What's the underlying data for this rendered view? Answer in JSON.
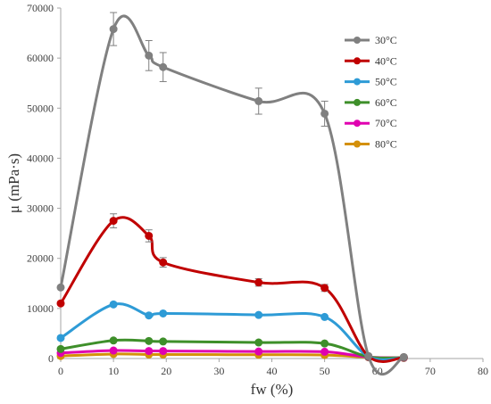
{
  "chart_data": {
    "type": "line",
    "title": "",
    "xlabel": "fw (%)",
    "ylabel": "μ (mPa·s)",
    "xlim": [
      0,
      80
    ],
    "ylim": [
      0,
      70000
    ],
    "x_ticks": [
      0,
      10,
      20,
      30,
      40,
      50,
      60,
      70,
      80
    ],
    "y_ticks": [
      0,
      10000,
      20000,
      30000,
      40000,
      50000,
      60000,
      70000
    ],
    "grid": false,
    "legend_position": "top-right",
    "smooth": true,
    "series": [
      {
        "name": "30°C",
        "color": "#808080",
        "x": [
          0,
          10,
          16.7,
          19.4,
          37.5,
          50,
          58.3,
          65
        ],
        "values": [
          14200,
          65800,
          60500,
          58200,
          51400,
          48900,
          500,
          300
        ],
        "error": [
          0,
          3300,
          3000,
          2900,
          2600,
          2500,
          0,
          0
        ]
      },
      {
        "name": "40°C",
        "color": "#c00000",
        "x": [
          0,
          10,
          16.7,
          19.4,
          37.5,
          50,
          58.3,
          65
        ],
        "values": [
          11000,
          27500,
          24500,
          19200,
          15200,
          14100,
          450,
          250
        ],
        "error": [
          0,
          1400,
          1200,
          950,
          750,
          700,
          0,
          0
        ]
      },
      {
        "name": "50°C",
        "color": "#2e9bd6",
        "x": [
          0,
          10,
          16.7,
          19.4,
          37.5,
          50,
          58.3,
          65
        ],
        "values": [
          4100,
          10800,
          8600,
          9000,
          8700,
          8300,
          400,
          200
        ],
        "error": [
          0,
          0,
          0,
          0,
          0,
          0,
          0,
          0
        ]
      },
      {
        "name": "60°C",
        "color": "#3e8f2a",
        "x": [
          0,
          10,
          16.7,
          19.4,
          37.5,
          50,
          58.3,
          65
        ],
        "values": [
          1900,
          3600,
          3500,
          3400,
          3200,
          3000,
          350,
          200
        ],
        "error": [
          0,
          0,
          0,
          0,
          0,
          0,
          0,
          0
        ]
      },
      {
        "name": "70°C",
        "color": "#e000b0",
        "x": [
          0,
          10,
          16.7,
          19.4,
          37.5,
          50,
          58.3,
          65
        ],
        "values": [
          1100,
          1600,
          1500,
          1500,
          1400,
          1350,
          300,
          150
        ],
        "error": [
          0,
          0,
          0,
          0,
          0,
          0,
          0,
          0
        ]
      },
      {
        "name": "80°C",
        "color": "#d4900a",
        "x": [
          0,
          10,
          16.7,
          19.4,
          37.5,
          50,
          58.3,
          65
        ],
        "values": [
          500,
          900,
          800,
          800,
          750,
          700,
          250,
          100
        ],
        "error": [
          0,
          0,
          0,
          0,
          0,
          0,
          0,
          0
        ]
      }
    ]
  }
}
